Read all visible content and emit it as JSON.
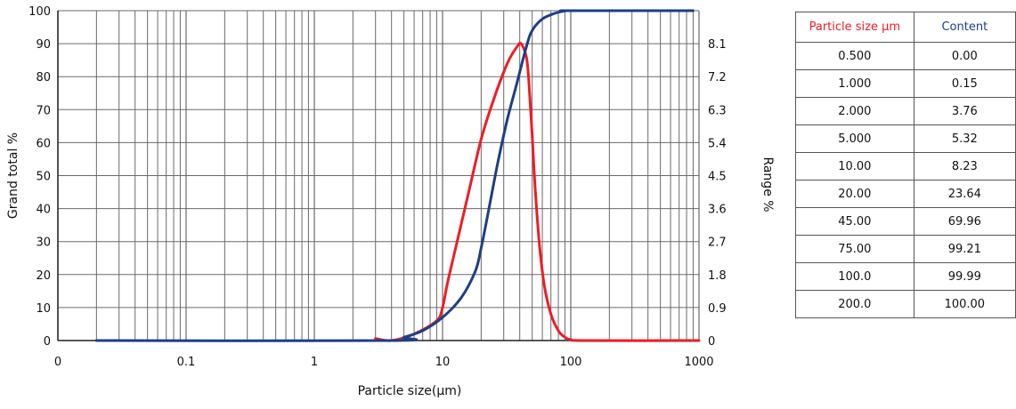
{
  "chart_data": {
    "type": "line",
    "xlabel": "Particle size(μm)",
    "ylabel_left": "Grand total %",
    "ylabel_right": "Range %",
    "x_scale": "log",
    "x_tick_labels": [
      "0",
      "0.1",
      "1",
      "10",
      "100",
      "1000"
    ],
    "x_tick_values": [
      0.01,
      0.1,
      1,
      10,
      100,
      1000
    ],
    "y_left_range": [
      0,
      100
    ],
    "y_left_ticks": [
      0,
      10,
      20,
      30,
      40,
      50,
      60,
      70,
      80,
      90,
      100
    ],
    "y_right_ticks": [
      {
        "at": 0,
        "label": "0"
      },
      {
        "at": 10,
        "label": "0.9"
      },
      {
        "at": 20,
        "label": "1.8"
      },
      {
        "at": 30,
        "label": "2.7"
      },
      {
        "at": 40,
        "label": "3.6"
      },
      {
        "at": 50,
        "label": "4.5"
      },
      {
        "at": 60,
        "label": "5.4"
      },
      {
        "at": 70,
        "label": "6.3"
      },
      {
        "at": 80,
        "label": "7.2"
      },
      {
        "at": 90,
        "label": "8.1"
      }
    ],
    "grid": true,
    "series": [
      {
        "color": "#ee1c25",
        "axis": "right",
        "points": [
          [
            3,
            0.6
          ],
          [
            4,
            0
          ],
          [
            6,
            2
          ],
          [
            9,
            6
          ],
          [
            10,
            10
          ],
          [
            11,
            18
          ],
          [
            13,
            30
          ],
          [
            16,
            45
          ],
          [
            20,
            61
          ],
          [
            25,
            73
          ],
          [
            32,
            84
          ],
          [
            38,
            89
          ],
          [
            41,
            90
          ],
          [
            45,
            86
          ],
          [
            47,
            79
          ],
          [
            50,
            62
          ],
          [
            53,
            45
          ],
          [
            57,
            29
          ],
          [
            62,
            17
          ],
          [
            70,
            8
          ],
          [
            80,
            3
          ],
          [
            90,
            1
          ],
          [
            100,
            0.3
          ],
          [
            130,
            0
          ],
          [
            1000,
            0
          ]
        ]
      },
      {
        "color": "#1c3f86",
        "axis": "left",
        "points": [
          [
            0.02,
            0
          ],
          [
            4,
            0
          ],
          [
            5,
            1
          ],
          [
            7,
            3
          ],
          [
            10,
            7
          ],
          [
            14,
            13
          ],
          [
            18,
            21
          ],
          [
            20,
            28
          ],
          [
            23,
            40
          ],
          [
            27,
            54
          ],
          [
            32,
            67
          ],
          [
            38,
            78
          ],
          [
            45,
            89
          ],
          [
            50,
            94
          ],
          [
            60,
            97.5
          ],
          [
            75,
            99.2
          ],
          [
            90,
            99.9
          ],
          [
            100,
            100
          ],
          [
            900,
            100
          ]
        ]
      }
    ]
  },
  "table": {
    "headers": [
      "Particle size μm",
      "Content"
    ],
    "header_colors": [
      "#ee1c25",
      "#1c3f86"
    ],
    "rows": [
      [
        "0.500",
        "0.00"
      ],
      [
        "1.000",
        "0.15"
      ],
      [
        "2.000",
        "3.76"
      ],
      [
        "5.000",
        "5.32"
      ],
      [
        "10.00",
        "8.23"
      ],
      [
        "20.00",
        "23.64"
      ],
      [
        "45.00",
        "69.96"
      ],
      [
        "75.00",
        "99.21"
      ],
      [
        "100.0",
        "99.99"
      ],
      [
        "200.0",
        "100.00"
      ]
    ]
  }
}
